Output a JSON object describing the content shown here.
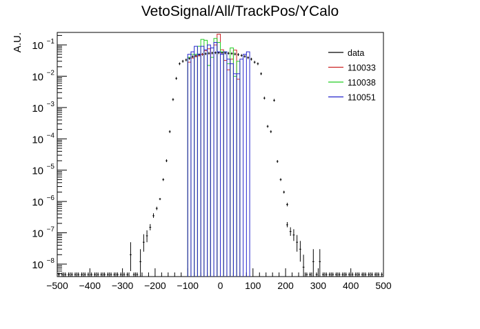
{
  "chart_data": {
    "type": "histogram",
    "title": "VetoSignal/All/TrackPos/YCalo",
    "xlabel": "",
    "ylabel": "A.U.",
    "xlim": [
      -500,
      500
    ],
    "ylim": [
      4e-09,
      0.25
    ],
    "yscale": "log",
    "grid": false,
    "legend_position": "top-right",
    "x_ticks": [
      -500,
      -400,
      -300,
      -200,
      -100,
      0,
      100,
      200,
      300,
      400,
      500
    ],
    "x_tick_labels": [
      "−500",
      "−400",
      "−300",
      "−200",
      "−100",
      "0",
      "100",
      "200",
      "300",
      "400",
      "500"
    ],
    "y_tick_labels": [
      {
        "value": 1e-08,
        "mantissa": "10",
        "exp": "−8"
      },
      {
        "value": 1e-07,
        "mantissa": "10",
        "exp": "−7"
      },
      {
        "value": 1e-06,
        "mantissa": "10",
        "exp": "−6"
      },
      {
        "value": 1e-05,
        "mantissa": "10",
        "exp": "−5"
      },
      {
        "value": 0.0001,
        "mantissa": "10",
        "exp": "−4"
      },
      {
        "value": 0.001,
        "mantissa": "10",
        "exp": "−3"
      },
      {
        "value": 0.01,
        "mantissa": "10",
        "exp": "−2"
      },
      {
        "value": 0.1,
        "mantissa": "10",
        "exp": "−1"
      }
    ],
    "series": [
      {
        "name": "data",
        "style": "points",
        "color": "#000000",
        "bin_width": 10,
        "points": [
          {
            "x": -275,
            "y": 2e-08,
            "lo": 6e-09,
            "hi": 5e-08
          },
          {
            "x": -245,
            "y": 1.2e-08,
            "lo": 4e-09,
            "hi": 3e-08
          },
          {
            "x": -235,
            "y": 5e-08,
            "lo": 2.5e-08,
            "hi": 9e-08
          },
          {
            "x": -225,
            "y": 8e-08,
            "lo": 5e-08,
            "hi": 1.2e-07
          },
          {
            "x": -215,
            "y": 1.5e-07,
            "lo": 1.2e-07,
            "hi": 1.9e-07
          },
          {
            "x": -205,
            "y": 3.5e-07,
            "lo": 3e-07,
            "hi": 4.2e-07
          },
          {
            "x": -195,
            "y": 6e-07,
            "lo": 5.3e-07,
            "hi": 6.8e-07
          },
          {
            "x": -185,
            "y": 1.2e-06,
            "lo": 1.1e-06,
            "hi": 1.3e-06
          },
          {
            "x": -175,
            "y": 5e-06
          },
          {
            "x": -165,
            "y": 2e-05
          },
          {
            "x": -155,
            "y": 0.00017
          },
          {
            "x": -145,
            "y": 0.0018
          },
          {
            "x": -135,
            "y": 0.0085
          },
          {
            "x": -125,
            "y": 0.025
          },
          {
            "x": -115,
            "y": 0.03
          },
          {
            "x": -105,
            "y": 0.033
          },
          {
            "x": -95,
            "y": 0.037
          },
          {
            "x": -85,
            "y": 0.042
          },
          {
            "x": -75,
            "y": 0.045
          },
          {
            "x": -65,
            "y": 0.048
          },
          {
            "x": -55,
            "y": 0.05
          },
          {
            "x": -45,
            "y": 0.052
          },
          {
            "x": -35,
            "y": 0.054
          },
          {
            "x": -25,
            "y": 0.055
          },
          {
            "x": -15,
            "y": 0.056
          },
          {
            "x": -5,
            "y": 0.056
          },
          {
            "x": 5,
            "y": 0.056
          },
          {
            "x": 15,
            "y": 0.055
          },
          {
            "x": 25,
            "y": 0.054
          },
          {
            "x": 35,
            "y": 0.053
          },
          {
            "x": 45,
            "y": 0.051
          },
          {
            "x": 55,
            "y": 0.049
          },
          {
            "x": 65,
            "y": 0.046
          },
          {
            "x": 75,
            "y": 0.043
          },
          {
            "x": 85,
            "y": 0.039
          },
          {
            "x": 95,
            "y": 0.035
          },
          {
            "x": 105,
            "y": 0.028
          },
          {
            "x": 115,
            "y": 0.025
          },
          {
            "x": 125,
            "y": 0.012
          },
          {
            "x": 135,
            "y": 0.002
          },
          {
            "x": 145,
            "y": 0.00025
          },
          {
            "x": 155,
            "y": 0.00017
          },
          {
            "x": 165,
            "y": 0.0017
          },
          {
            "x": 175,
            "y": 1.9e-05
          },
          {
            "x": 185,
            "y": 5e-06
          },
          {
            "x": 195,
            "y": 2e-06,
            "lo": 1.8e-06,
            "hi": 2.2e-06
          },
          {
            "x": 205,
            "y": 8e-07,
            "lo": 7e-07,
            "hi": 9.1e-07
          },
          {
            "x": 205,
            "y": 1.8e-07,
            "lo": 1.5e-07,
            "hi": 2.2e-07
          },
          {
            "x": 215,
            "y": 1.1e-07,
            "lo": 8e-08,
            "hi": 1.5e-07
          },
          {
            "x": 225,
            "y": 8.5e-08,
            "lo": 5.5e-08,
            "hi": 1.3e-07
          },
          {
            "x": 235,
            "y": 5e-08,
            "lo": 2.5e-08,
            "hi": 8.5e-08
          },
          {
            "x": 245,
            "y": 3e-08,
            "lo": 1.2e-08,
            "hi": 5.5e-08
          },
          {
            "x": 255,
            "y": 8e-09,
            "lo": 4e-09,
            "hi": 2e-08
          },
          {
            "x": 285,
            "y": 1.2e-08,
            "lo": 4e-09,
            "hi": 3e-08
          },
          {
            "x": 305,
            "y": 1.2e-08,
            "lo": 4e-09,
            "hi": 3e-08
          }
        ]
      },
      {
        "name": "110033",
        "style": "step",
        "color": "#cc2222",
        "bin_width": 10,
        "bins": [
          {
            "x": -95,
            "y": 0.028
          },
          {
            "x": -85,
            "y": 0.038
          },
          {
            "x": -75,
            "y": 0.042
          },
          {
            "x": -65,
            "y": 0.045
          },
          {
            "x": -55,
            "y": 0.05
          },
          {
            "x": -45,
            "y": 0.065
          },
          {
            "x": -35,
            "y": 0.075
          },
          {
            "x": -25,
            "y": 0.08
          },
          {
            "x": -15,
            "y": 0.1
          },
          {
            "x": -5,
            "y": 0.22
          },
          {
            "x": 5,
            "y": 0.07
          },
          {
            "x": 15,
            "y": 0.032
          },
          {
            "x": 25,
            "y": 0.016
          },
          {
            "x": 35,
            "y": 0.035
          },
          {
            "x": 45,
            "y": 0.068
          },
          {
            "x": 55,
            "y": 0.008
          }
        ]
      },
      {
        "name": "110038",
        "style": "step",
        "color": "#22cc22",
        "bin_width": 10,
        "bins": [
          {
            "x": -95,
            "y": 0.04
          },
          {
            "x": -85,
            "y": 0.05
          },
          {
            "x": -75,
            "y": 0.05
          },
          {
            "x": -65,
            "y": 0.09
          },
          {
            "x": -55,
            "y": 0.15
          },
          {
            "x": -45,
            "y": 0.14
          },
          {
            "x": -35,
            "y": 0.022
          },
          {
            "x": -25,
            "y": 0.04
          },
          {
            "x": -15,
            "y": 0.16
          },
          {
            "x": -5,
            "y": 0.12
          },
          {
            "x": 5,
            "y": 0.06
          },
          {
            "x": 15,
            "y": 0.06
          },
          {
            "x": 25,
            "y": 0.025
          },
          {
            "x": 35,
            "y": 0.08
          },
          {
            "x": 45,
            "y": 0.01
          },
          {
            "x": 55,
            "y": 0.03
          }
        ]
      },
      {
        "name": "110051",
        "style": "step",
        "color": "#2222cc",
        "bin_width": 10,
        "bins": [
          {
            "x": -95,
            "y": 0.05
          },
          {
            "x": -85,
            "y": 0.06
          },
          {
            "x": -75,
            "y": 0.09
          },
          {
            "x": -65,
            "y": 0.05
          },
          {
            "x": -55,
            "y": 0.09
          },
          {
            "x": -45,
            "y": 0.07
          },
          {
            "x": -35,
            "y": 0.1
          },
          {
            "x": -25,
            "y": 0.08
          },
          {
            "x": -15,
            "y": 0.12
          },
          {
            "x": -5,
            "y": 0.06
          },
          {
            "x": 5,
            "y": 0.05
          },
          {
            "x": 15,
            "y": 0.06
          },
          {
            "x": 25,
            "y": 0.035
          },
          {
            "x": 35,
            "y": 0.025
          },
          {
            "x": 45,
            "y": 0.012
          },
          {
            "x": 55,
            "y": 0.012
          },
          {
            "x": 65,
            "y": 0.035
          },
          {
            "x": 75,
            "y": 0.05
          },
          {
            "x": 85,
            "y": 0.06
          }
        ]
      }
    ]
  }
}
